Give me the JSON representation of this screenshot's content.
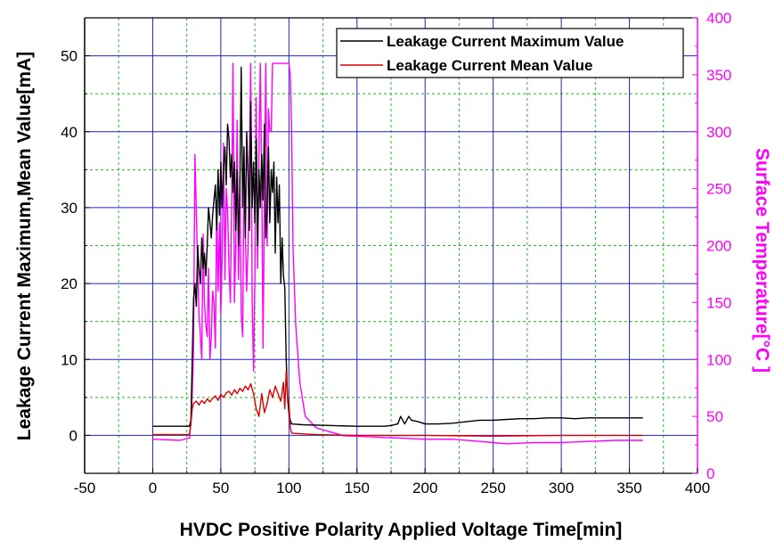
{
  "chart_data": {
    "type": "line",
    "xlabel": "HVDC Positive Polarity Applied Voltage Time[min]",
    "ylabel": "Leakage Current Maximum,Mean Value[mA]",
    "y2label": "Surface Temperature[°C ]",
    "xlim": [
      -50,
      400
    ],
    "ylim": [
      -5,
      55
    ],
    "y2lim": [
      0,
      400
    ],
    "xticks": [
      -50,
      0,
      50,
      100,
      150,
      200,
      250,
      300,
      350,
      400
    ],
    "yticks": [
      0,
      10,
      20,
      30,
      40,
      50
    ],
    "y2ticks": [
      0,
      50,
      100,
      150,
      200,
      250,
      300,
      350,
      400
    ],
    "grid": true,
    "legend_position": "top-right",
    "colors": {
      "max": "#000000",
      "mean": "#dd0000",
      "temperature": "#ff00ff",
      "major_grid": "#2222cc",
      "minor_grid": "#22bb22",
      "left_axis": "#000000",
      "right_axis": "#ff00ff"
    },
    "series": [
      {
        "name": "Leakage Current Maximum Value",
        "axis": "left",
        "x": [
          0,
          27,
          28,
          29,
          30,
          31,
          32,
          33,
          34,
          35,
          36,
          37,
          38,
          39,
          40,
          41,
          42,
          43,
          44,
          45,
          46,
          47,
          48,
          49,
          50,
          51,
          52,
          53,
          54,
          55,
          56,
          57,
          58,
          59,
          60,
          61,
          62,
          63,
          64,
          65,
          66,
          67,
          68,
          69,
          70,
          71,
          72,
          73,
          74,
          75,
          76,
          77,
          78,
          79,
          80,
          81,
          82,
          83,
          84,
          85,
          86,
          87,
          88,
          89,
          90,
          91,
          92,
          93,
          94,
          95,
          96,
          97,
          98,
          99,
          100,
          101,
          102,
          110,
          130,
          150,
          170,
          175,
          180,
          182,
          185,
          188,
          190,
          195,
          200,
          210,
          220,
          230,
          240,
          250,
          260,
          270,
          280,
          290,
          300,
          310,
          320,
          330,
          340,
          350,
          360
        ],
        "y": [
          1.2,
          1.2,
          2,
          10,
          18,
          20,
          17,
          25,
          22,
          20,
          26,
          22,
          24,
          21,
          25,
          30,
          28,
          26,
          29,
          31,
          33,
          27,
          35,
          29,
          36,
          30,
          35,
          38,
          33,
          41,
          39,
          34,
          37,
          32,
          36,
          27,
          35,
          25,
          33,
          48.5,
          30,
          38,
          26,
          40,
          34,
          27,
          44,
          30,
          36,
          28,
          39,
          25,
          35,
          30,
          37,
          31,
          41,
          26,
          30,
          38,
          28,
          35,
          32,
          36,
          24,
          34,
          28,
          33,
          20,
          26,
          21,
          19.5,
          10,
          5,
          3,
          2,
          1.5,
          1.4,
          1.3,
          1.2,
          1.2,
          1.3,
          1.5,
          2.5,
          1.5,
          2.5,
          2,
          1.8,
          1.5,
          1.5,
          1.6,
          1.8,
          2,
          2,
          2.1,
          2.2,
          2.2,
          2.3,
          2.3,
          2.2,
          2.3,
          2.3,
          2.3,
          2.3,
          2.3
        ]
      },
      {
        "name": "Leakage Current Mean Value",
        "axis": "left",
        "x": [
          0,
          27,
          28,
          29,
          30,
          32,
          34,
          36,
          38,
          40,
          42,
          44,
          46,
          48,
          50,
          52,
          54,
          56,
          58,
          60,
          62,
          64,
          66,
          68,
          70,
          72,
          74,
          76,
          78,
          80,
          82,
          84,
          86,
          88,
          90,
          92,
          94,
          96,
          97,
          98,
          99,
          100,
          101,
          102,
          120,
          150,
          200,
          250,
          300,
          360
        ],
        "y": [
          0.1,
          0.1,
          1.5,
          3.5,
          4.2,
          4.5,
          4.0,
          4.6,
          4.2,
          4.8,
          4.4,
          4.9,
          5.2,
          4.6,
          5.4,
          5.0,
          5.6,
          5.8,
          5.3,
          6.0,
          5.5,
          6.2,
          5.8,
          6.5,
          6.0,
          6.8,
          5.5,
          3.5,
          2.5,
          5.5,
          3.0,
          4.2,
          6.0,
          5.0,
          6.5,
          5.5,
          4.5,
          7.0,
          3.5,
          8.5,
          5.0,
          4.5,
          1.0,
          0.3,
          0.1,
          0.0,
          0.0,
          -0.1,
          0.0,
          0.0
        ]
      },
      {
        "name": "Surface Temperature",
        "axis": "right",
        "x": [
          0,
          20,
          27,
          28,
          29,
          30,
          31,
          32,
          33,
          34,
          35,
          36,
          37,
          38,
          39,
          40,
          41,
          42,
          43,
          44,
          45,
          46,
          47,
          48,
          49,
          50,
          51,
          52,
          53,
          54,
          55,
          56,
          57,
          58,
          59,
          60,
          61,
          62,
          63,
          64,
          65,
          66,
          67,
          68,
          69,
          70,
          71,
          72,
          73,
          74,
          75,
          76,
          77,
          78,
          79,
          80,
          81,
          82,
          83,
          84,
          85,
          86,
          87,
          88,
          89,
          90,
          91,
          92,
          93,
          94,
          95,
          96,
          97,
          98,
          99,
          100,
          101,
          102,
          103,
          105,
          108,
          112,
          120,
          140,
          160,
          180,
          200,
          220,
          240,
          250,
          260,
          280,
          300,
          320,
          340,
          360
        ],
        "y": [
          30,
          29,
          31,
          45,
          70,
          110,
          280,
          230,
          180,
          140,
          120,
          100,
          210,
          150,
          130,
          120,
          180,
          100,
          120,
          160,
          150,
          110,
          240,
          160,
          220,
          140,
          190,
          290,
          170,
          250,
          230,
          180,
          150,
          240,
          360,
          150,
          200,
          310,
          170,
          260,
          140,
          120,
          260,
          210,
          160,
          200,
          280,
          360,
          150,
          90,
          170,
          330,
          180,
          280,
          360,
          260,
          110,
          240,
          360,
          200,
          320,
          300,
          300,
          360,
          360,
          360,
          360,
          360,
          360,
          360,
          360,
          360,
          360,
          360,
          360,
          360,
          350,
          300,
          200,
          130,
          80,
          50,
          40,
          33,
          32,
          31,
          30,
          30,
          28,
          27,
          26,
          27,
          27,
          28,
          29,
          29
        ]
      }
    ]
  }
}
